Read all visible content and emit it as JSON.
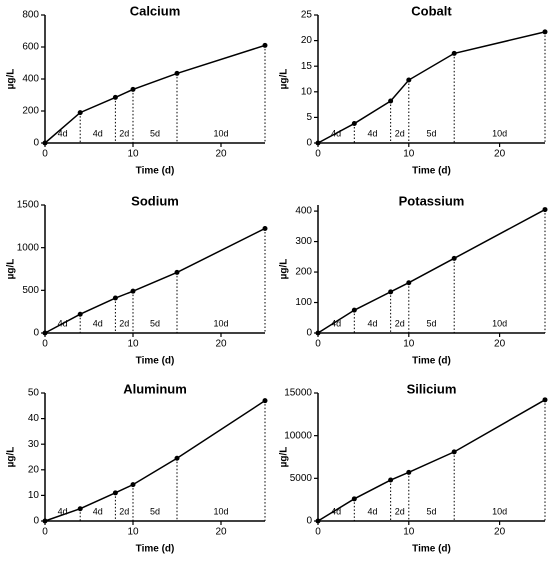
{
  "chart_data": [
    {
      "type": "line",
      "title": "Calcium",
      "x_label": "Time (d)",
      "y_label": "µg/L",
      "x": [
        0,
        4,
        8,
        10,
        15,
        25
      ],
      "values": [
        0,
        190,
        285,
        335,
        435,
        610
      ],
      "xlim": [
        0,
        25
      ],
      "xticks": [
        0,
        10,
        20
      ],
      "ylim": [
        0,
        800
      ],
      "yticks": [
        0,
        200,
        400,
        600,
        800
      ],
      "color": "#000000",
      "annotations": [
        "4d",
        "4d",
        "2d",
        "5d",
        "10d"
      ]
    },
    {
      "type": "line",
      "title": "Cobalt",
      "x_label": "Time (d)",
      "y_label": "µg/L",
      "x": [
        0,
        4,
        8,
        10,
        15,
        25
      ],
      "values": [
        0,
        3.8,
        8.2,
        12.3,
        17.5,
        21.7
      ],
      "xlim": [
        0,
        25
      ],
      "xticks": [
        0,
        10,
        20
      ],
      "ylim": [
        0,
        25
      ],
      "yticks": [
        0,
        5,
        10,
        15,
        20,
        25
      ],
      "color": "#000000",
      "annotations": [
        "4d",
        "4d",
        "2d",
        "5d",
        "10d"
      ]
    },
    {
      "type": "line",
      "title": "Sodium",
      "x_label": "Time (d)",
      "y_label": "µg/L",
      "x": [
        0,
        4,
        8,
        10,
        15,
        25
      ],
      "values": [
        0,
        220,
        410,
        490,
        710,
        1225
      ],
      "xlim": [
        0,
        25
      ],
      "xticks": [
        0,
        10,
        20
      ],
      "ylim": [
        0,
        1500
      ],
      "yticks": [
        0,
        500,
        1000,
        1500
      ],
      "color": "#000000",
      "annotations": [
        "4d",
        "4d",
        "2d",
        "5d",
        "10d"
      ]
    },
    {
      "type": "line",
      "title": "Potassium",
      "x_label": "Time (d)",
      "y_label": "µg/L",
      "x": [
        0,
        4,
        8,
        10,
        15,
        25
      ],
      "values": [
        0,
        75,
        135,
        165,
        245,
        405
      ],
      "xlim": [
        0,
        25
      ],
      "xticks": [
        0,
        10,
        20
      ],
      "ylim": [
        0,
        420
      ],
      "yticks": [
        0,
        100,
        200,
        300,
        400
      ],
      "color": "#000000",
      "annotations": [
        "4d",
        "4d",
        "2d",
        "5d",
        "10d"
      ]
    },
    {
      "type": "line",
      "title": "Aluminum",
      "x_label": "Time (d)",
      "y_label": "µg/L",
      "x": [
        0,
        4,
        8,
        10,
        15,
        25
      ],
      "values": [
        0,
        4.8,
        11,
        14.2,
        24.5,
        47
      ],
      "xlim": [
        0,
        25
      ],
      "xticks": [
        0,
        10,
        20
      ],
      "ylim": [
        0,
        50
      ],
      "yticks": [
        0,
        10,
        20,
        30,
        40,
        50
      ],
      "color": "#000000",
      "annotations": [
        "4d",
        "4d",
        "2d",
        "5d",
        "10d"
      ]
    },
    {
      "type": "line",
      "title": "Silicium",
      "x_label": "Time (d)",
      "y_label": "µg/L",
      "x": [
        0,
        4,
        8,
        10,
        15,
        25
      ],
      "values": [
        0,
        2600,
        4800,
        5700,
        8100,
        14200
      ],
      "xlim": [
        0,
        25
      ],
      "xticks": [
        0,
        10,
        20
      ],
      "ylim": [
        0,
        15000
      ],
      "yticks": [
        0,
        5000,
        10000,
        15000
      ],
      "color": "#000000",
      "annotations": [
        "4d",
        "4d",
        "2d",
        "5d",
        "10d"
      ]
    }
  ]
}
